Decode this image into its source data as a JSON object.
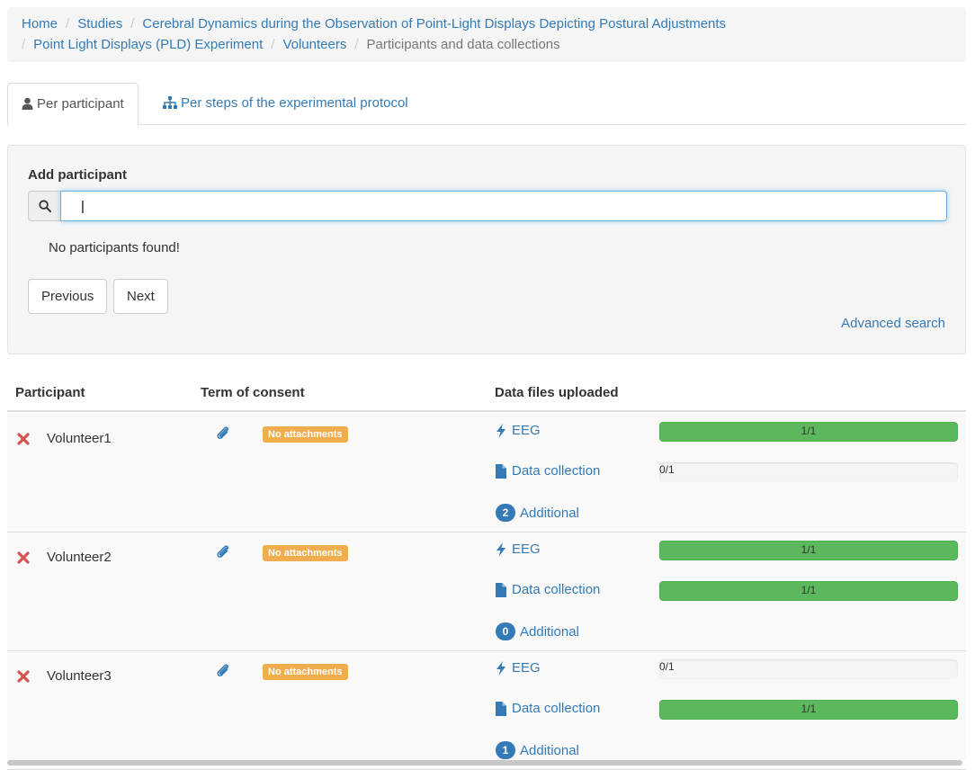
{
  "breadcrumb": {
    "items": [
      {
        "label": "Home"
      },
      {
        "label": "Studies"
      },
      {
        "label": "Cerebral Dynamics during the Observation of Point-Light Displays Depicting Postural Adjustments"
      },
      {
        "label": "Point Light Displays (PLD) Experiment"
      },
      {
        "label": "Volunteers"
      },
      {
        "label": "Participants and data collections"
      }
    ]
  },
  "tabs": [
    {
      "label": "Per participant",
      "icon": "user-icon",
      "active": true
    },
    {
      "label": "Per steps of the experimental protocol",
      "icon": "sitemap-icon",
      "active": false
    }
  ],
  "add_participant": {
    "label": "Add participant",
    "search_value": "|",
    "search_placeholder": "",
    "empty_message": "No participants found!",
    "previous_label": "Previous",
    "next_label": "Next",
    "advanced_search_label": "Advanced search"
  },
  "table": {
    "headers": {
      "participant": "Participant",
      "consent": "Term of consent",
      "data_files": "Data files uploaded"
    },
    "rows": [
      {
        "name": "Volunteer1",
        "consent_badge": "No attachments",
        "eeg_label": "EEG",
        "eeg_progress": "1/1",
        "eeg_fraction": 1,
        "data_collection_label": "Data collection",
        "data_collection_progress": "0/1",
        "data_collection_fraction": 0,
        "additional_count": "2",
        "additional_label": "Additional"
      },
      {
        "name": "Volunteer2",
        "consent_badge": "No attachments",
        "eeg_label": "EEG",
        "eeg_progress": "1/1",
        "eeg_fraction": 1,
        "data_collection_label": "Data collection",
        "data_collection_progress": "1/1",
        "data_collection_fraction": 1,
        "additional_count": "0",
        "additional_label": "Additional"
      },
      {
        "name": "Volunteer3",
        "consent_badge": "No attachments",
        "eeg_label": "EEG",
        "eeg_progress": "0/1",
        "eeg_fraction": 0,
        "data_collection_label": "Data collection",
        "data_collection_progress": "1/1",
        "data_collection_fraction": 1,
        "additional_count": "1",
        "additional_label": "Additional"
      }
    ]
  },
  "colors": {
    "link": "#337ab7",
    "success": "#5cb85c",
    "warning": "#f0ad4e",
    "danger": "#d9534f"
  }
}
